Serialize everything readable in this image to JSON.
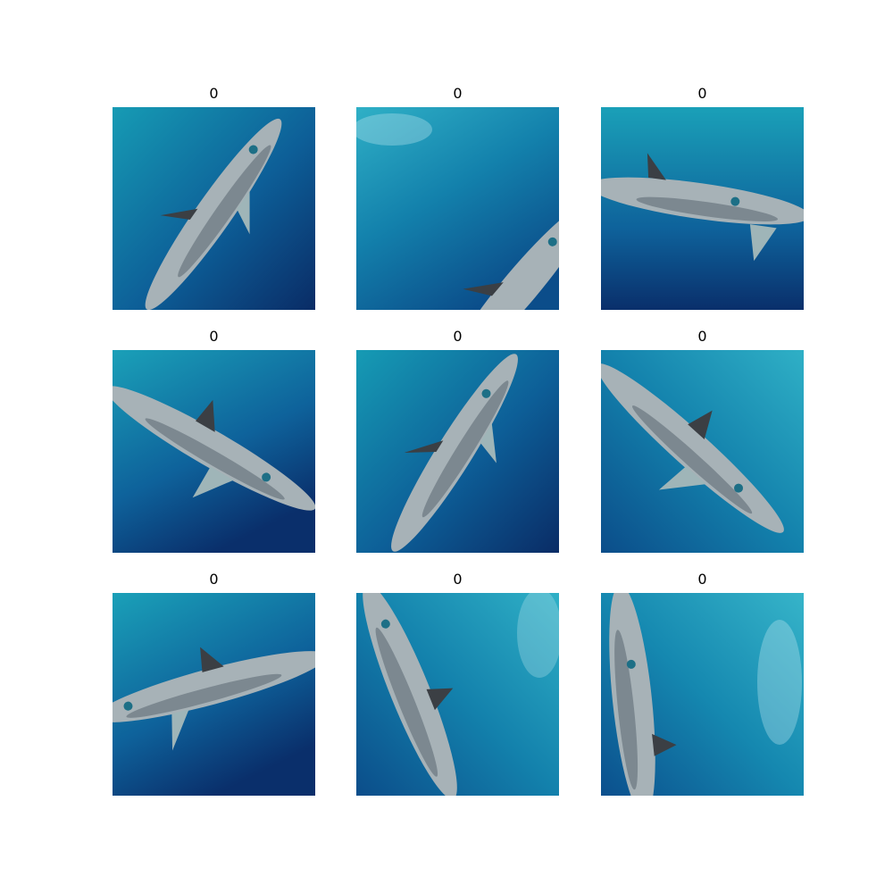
{
  "figure": {
    "panels": [
      {
        "label": "0",
        "subject": "shark-swimming-upward-right"
      },
      {
        "label": "0",
        "subject": "shark-rising-from-lower-right"
      },
      {
        "label": "0",
        "subject": "shark-swimming-right"
      },
      {
        "label": "0",
        "subject": "shark-swimming-lower-right"
      },
      {
        "label": "0",
        "subject": "shark-swimming-upward-right"
      },
      {
        "label": "0",
        "subject": "shark-swimming-lower-right"
      },
      {
        "label": "0",
        "subject": "shark-swimming-left"
      },
      {
        "label": "0",
        "subject": "shark-swimming-downward"
      },
      {
        "label": "0",
        "subject": "shark-swimming-upward"
      }
    ],
    "colors": {
      "water_top": "#1aa0b8",
      "water_mid": "#0f6e9e",
      "water_deep": "#0a2f6b",
      "shark_body": "#a9b3b8",
      "shark_shadow": "#5d6a73",
      "title_text": "#000000"
    }
  }
}
